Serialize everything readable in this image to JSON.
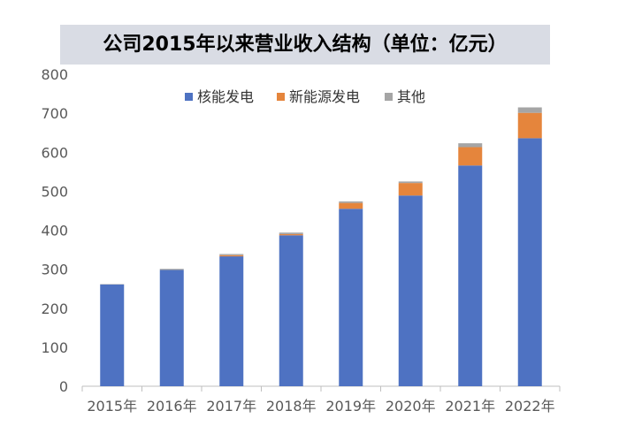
{
  "chart_data": {
    "type": "bar",
    "stacked": true,
    "title": "公司2015年以来营业收入结构（单位：亿元）",
    "categories": [
      "2015年",
      "2016年",
      "2017年",
      "2018年",
      "2019年",
      "2020年",
      "2021年",
      "2022年"
    ],
    "series": [
      {
        "name": "核能发电",
        "color": "#4e72c2",
        "values": [
          261,
          298,
          333,
          387,
          455,
          489,
          566,
          636
        ]
      },
      {
        "name": "新能源发电",
        "color": "#e5853c",
        "values": [
          0,
          0,
          3,
          3,
          15,
          32,
          47,
          65
        ]
      },
      {
        "name": "其他",
        "color": "#a5a5a5",
        "values": [
          1,
          3,
          3,
          4,
          4,
          4,
          10,
          14
        ]
      }
    ],
    "ylim": [
      0,
      800
    ],
    "yticks": [
      0,
      100,
      200,
      300,
      400,
      500,
      600,
      700,
      800
    ],
    "grid": false,
    "legend_position": "top"
  }
}
